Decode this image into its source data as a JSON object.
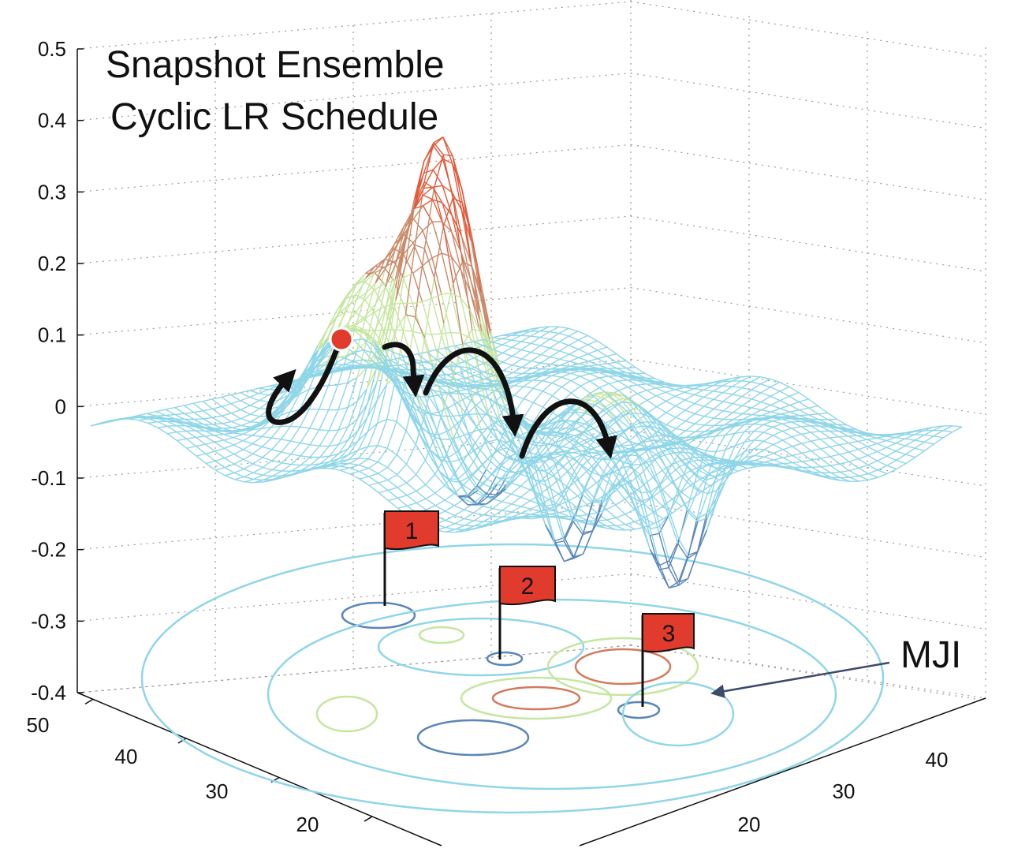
{
  "chart_data": {
    "type": "surface",
    "title_lines": [
      "Snapshot Ensemble",
      "Cyclic LR Schedule"
    ],
    "zlim": [
      -0.4,
      0.5
    ],
    "z_ticks": [
      "0.5",
      "0.4",
      "0.3",
      "0.2",
      "0.1",
      "0",
      "-0.1",
      "-0.2",
      "-0.3",
      "-0.4"
    ],
    "z_tick_values": [
      0.5,
      0.4,
      0.3,
      0.2,
      0.1,
      0,
      -0.1,
      -0.2,
      -0.3,
      -0.4
    ],
    "x_ticks_left": [
      "50",
      "40",
      "30",
      "20"
    ],
    "y_ticks_right": [
      "40",
      "30",
      "20"
    ],
    "grid": true,
    "markers": [
      {
        "label": "1"
      },
      {
        "label": "2"
      },
      {
        "label": "3"
      }
    ],
    "annotation": "MJI",
    "colors": {
      "low": "#5a86b8",
      "mid": "#8fd6e8",
      "midhigh": "#c6e6a0",
      "high": "#e15a3a",
      "flag": "#e03b2c",
      "start_point": "#e03b2c",
      "trajectory": "#111111",
      "annotation_arrow": "#3c4b6a"
    }
  }
}
